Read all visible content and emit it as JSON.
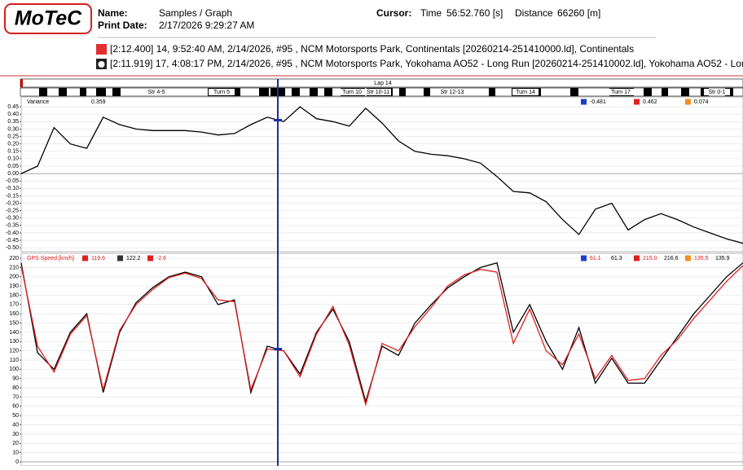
{
  "header": {
    "logo": "MoTeC",
    "name_label": "Name:",
    "name": "Samples / Graph",
    "print_date_label": "Print Date:",
    "print_date": "2/17/2026 9:29:27 AM",
    "cursor_label": "Cursor:",
    "time_label": "Time",
    "time": "56:52.760 [s]",
    "distance_label": "Distance",
    "distance": "66260 [m]",
    "files": [
      "[2:12.400] 14, 9:52:40 AM, 2/14/2026, #95 , NCM Motorsports Park, Continentals [20260214-251410000.ld], Continentals",
      "[2:11.919] 17, 4:08:17 PM, 2/14/2026, #95 , NCM Motorsports Park, Yokohama AO52 - Long Run [20260214-251410002.ld], Yokohama AO52 - Long Run"
    ]
  },
  "track": {
    "lap": "Lap 14",
    "sectors": [
      "Str 4-5",
      "Turn 5",
      "Turn 10",
      "Str 10-11",
      "Str 12-13",
      "Turn 14",
      "Turn 17",
      "Str 0-1"
    ]
  },
  "chart_data": [
    {
      "type": "line",
      "title": "Variance",
      "readouts": [
        "0.359"
      ],
      "stats": [
        "-0.481",
        "0.462",
        "0.074"
      ],
      "ylim": [
        -0.51,
        0.5
      ],
      "yticks": [
        0.45,
        {
          "value": 0.4,
          "label": "0.40"
        },
        0.35,
        {
          "value": 0.3,
          "label": "0.30"
        },
        0.25,
        {
          "value": 0.2,
          "label": "0.20"
        },
        0.15,
        {
          "value": 0.1,
          "label": "0.10"
        },
        0.05,
        {
          "value": 0,
          "label": "0.00"
        },
        -0.05,
        {
          "value": -0.1,
          "label": "-0.10"
        },
        -0.15,
        {
          "value": -0.2,
          "label": "-0.20"
        },
        -0.25,
        {
          "value": -0.3,
          "label": "-0.30"
        },
        -0.35,
        {
          "value": -0.4,
          "label": "-0.40"
        },
        -0.45,
        {
          "value": -0.5,
          "label": "-0.50"
        }
      ],
      "grid": true,
      "series": [
        {
          "color": "#000000",
          "values": [
            0.0,
            0.05,
            0.31,
            0.2,
            0.17,
            0.38,
            0.33,
            0.3,
            0.29,
            0.29,
            0.29,
            0.28,
            0.26,
            0.27,
            0.33,
            0.38,
            0.35,
            0.45,
            0.37,
            0.35,
            0.32,
            0.44,
            0.34,
            0.22,
            0.15,
            0.13,
            0.12,
            0.1,
            0.07,
            -0.02,
            -0.12,
            -0.13,
            -0.19,
            -0.31,
            -0.41,
            -0.24,
            -0.2,
            -0.38,
            -0.31,
            -0.27,
            -0.31,
            -0.36,
            -0.4,
            -0.44,
            -0.47
          ]
        }
      ]
    },
    {
      "type": "line",
      "title": "GPS Speed [km/h]",
      "readouts": [
        "119.6",
        "122.2",
        "-2.6"
      ],
      "stats": [
        "61.1",
        "61.3",
        "215.0",
        "216.6",
        "135.5",
        "135.9"
      ],
      "ylim": [
        0,
        224
      ],
      "yticks": [
        0,
        10,
        20,
        30,
        40,
        50,
        60,
        70,
        80,
        90,
        100,
        110,
        120,
        130,
        140,
        150,
        160,
        170,
        180,
        190,
        200,
        210,
        220
      ],
      "grid": true,
      "series": [
        {
          "color": "#000000",
          "values": [
            215,
            118,
            100,
            140,
            160,
            75,
            140,
            172,
            188,
            200,
            205,
            200,
            170,
            175,
            75,
            125,
            120,
            95,
            140,
            165,
            130,
            65,
            125,
            115,
            150,
            170,
            188,
            200,
            210,
            215,
            140,
            170,
            130,
            100,
            145,
            85,
            112,
            85,
            85,
            110,
            135,
            160,
            180,
            200,
            215
          ]
        },
        {
          "color": "#e02020",
          "values": [
            212,
            125,
            97,
            138,
            158,
            78,
            142,
            170,
            186,
            199,
            204,
            198,
            175,
            173,
            78,
            122,
            120,
            92,
            138,
            168,
            126,
            62,
            128,
            120,
            146,
            167,
            190,
            202,
            208,
            205,
            128,
            165,
            120,
            105,
            138,
            90,
            115,
            88,
            90,
            115,
            132,
            155,
            175,
            195,
            212
          ]
        }
      ]
    }
  ]
}
